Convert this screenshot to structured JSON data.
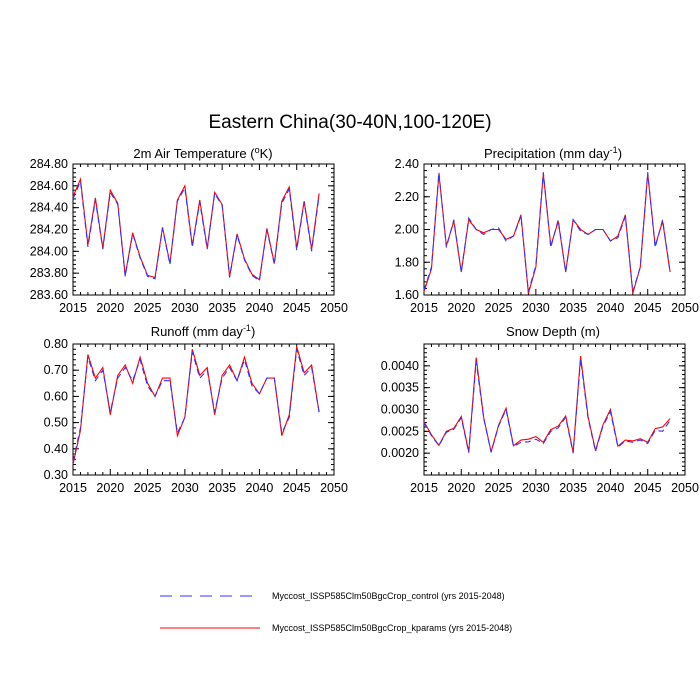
{
  "title": "Eastern China(30-40N,100-120E)",
  "colors": {
    "control": "#3333ff",
    "kparams": "#ff0000",
    "axis": "#000000"
  },
  "legend": {
    "control": "Myccost_ISSP585Clm50BgcCrop_control (yrs 2015-2048)",
    "kparams": "Myccost_ISSP585Clm50BgcCrop_kparams (yrs 2015-2048)"
  },
  "chart_data": [
    {
      "type": "line",
      "id": "air-temp",
      "title": "2m Air Temperature (",
      "title_sup": "o",
      "title_after": "K)",
      "xlim": [
        2015,
        2050
      ],
      "ylim": [
        283.6,
        284.8
      ],
      "xticks": [
        2015,
        2020,
        2025,
        2030,
        2035,
        2040,
        2045,
        2050
      ],
      "yticks": [
        283.6,
        283.8,
        284.0,
        284.2,
        284.4,
        284.6,
        284.8
      ],
      "ytick_labels": [
        "283.60",
        "283.80",
        "284.00",
        "284.20",
        "284.40",
        "284.60",
        "284.80"
      ],
      "x": [
        2015,
        2016,
        2017,
        2018,
        2019,
        2020,
        2021,
        2022,
        2023,
        2024,
        2025,
        2026,
        2027,
        2028,
        2029,
        2030,
        2031,
        2032,
        2033,
        2034,
        2035,
        2036,
        2037,
        2038,
        2039,
        2040,
        2041,
        2042,
        2043,
        2044,
        2045,
        2046,
        2047,
        2048
      ],
      "series": [
        {
          "name": "control",
          "values": [
            284.48,
            284.64,
            284.04,
            284.47,
            284.02,
            284.54,
            284.43,
            283.77,
            284.16,
            283.94,
            283.77,
            283.75,
            284.21,
            283.88,
            284.46,
            284.58,
            284.04,
            284.45,
            284.02,
            284.53,
            284.42,
            283.76,
            284.15,
            283.92,
            283.78,
            283.73,
            284.2,
            283.88,
            284.44,
            284.57,
            284.01,
            284.45,
            284.0,
            284.51
          ]
        },
        {
          "name": "kparams",
          "values": [
            284.5,
            284.66,
            284.06,
            284.49,
            284.03,
            284.56,
            284.44,
            283.78,
            284.17,
            283.95,
            283.78,
            283.76,
            284.22,
            283.89,
            284.47,
            284.6,
            284.05,
            284.47,
            284.03,
            284.54,
            284.43,
            283.77,
            284.16,
            283.93,
            283.79,
            283.74,
            284.21,
            283.89,
            284.46,
            284.59,
            284.03,
            284.46,
            284.02,
            284.53
          ]
        }
      ]
    },
    {
      "type": "line",
      "id": "precip",
      "title": "Precipitation (mm day",
      "title_sup": "-1",
      "title_after": ")",
      "xlim": [
        2015,
        2050
      ],
      "ylim": [
        1.6,
        2.4
      ],
      "xticks": [
        2015,
        2020,
        2025,
        2030,
        2035,
        2040,
        2045,
        2050
      ],
      "yticks": [
        1.6,
        1.8,
        2.0,
        2.2,
        2.4
      ],
      "ytick_labels": [
        "1.60",
        "1.80",
        "2.00",
        "2.20",
        "2.40"
      ],
      "x": [
        2015,
        2016,
        2017,
        2018,
        2019,
        2020,
        2021,
        2022,
        2023,
        2024,
        2025,
        2026,
        2027,
        2028,
        2029,
        2030,
        2031,
        2032,
        2033,
        2034,
        2035,
        2036,
        2037,
        2038,
        2039,
        2040,
        2041,
        2042,
        2043,
        2044,
        2045,
        2046,
        2047,
        2048
      ],
      "series": [
        {
          "name": "control",
          "values": [
            1.63,
            1.77,
            2.35,
            1.89,
            2.06,
            1.74,
            2.07,
            2.0,
            1.97,
            2.0,
            2.01,
            1.93,
            1.96,
            2.08,
            1.62,
            1.78,
            2.35,
            1.89,
            2.06,
            1.74,
            2.06,
            1.99,
            1.97,
            2.0,
            2.0,
            1.93,
            1.95,
            2.08,
            1.62,
            1.77,
            2.35,
            1.89,
            2.06,
            1.74
          ]
        },
        {
          "name": "kparams",
          "values": [
            1.62,
            1.76,
            2.34,
            1.9,
            2.05,
            1.74,
            2.06,
            2.0,
            1.98,
            2.0,
            2.0,
            1.94,
            1.96,
            2.09,
            1.61,
            1.77,
            2.34,
            1.9,
            2.05,
            1.74,
            2.06,
            2.0,
            1.97,
            2.0,
            2.0,
            1.93,
            1.96,
            2.09,
            1.61,
            1.77,
            2.34,
            1.9,
            2.05,
            1.74
          ]
        }
      ]
    },
    {
      "type": "line",
      "id": "runoff",
      "title": "Runoff (mm day",
      "title_sup": "-1",
      "title_after": ")",
      "xlim": [
        2015,
        2050
      ],
      "ylim": [
        0.3,
        0.8
      ],
      "xticks": [
        2015,
        2020,
        2025,
        2030,
        2035,
        2040,
        2045,
        2050
      ],
      "yticks": [
        0.3,
        0.4,
        0.5,
        0.6,
        0.7,
        0.8
      ],
      "ytick_labels": [
        "0.30",
        "0.40",
        "0.50",
        "0.60",
        "0.70",
        "0.80"
      ],
      "x": [
        2015,
        2016,
        2017,
        2018,
        2019,
        2020,
        2021,
        2022,
        2023,
        2024,
        2025,
        2026,
        2027,
        2028,
        2029,
        2030,
        2031,
        2032,
        2033,
        2034,
        2035,
        2036,
        2037,
        2038,
        2039,
        2040,
        2041,
        2042,
        2043,
        2044,
        2045,
        2046,
        2047,
        2048
      ],
      "series": [
        {
          "name": "control",
          "values": [
            0.35,
            0.48,
            0.75,
            0.66,
            0.7,
            0.54,
            0.67,
            0.71,
            0.66,
            0.74,
            0.64,
            0.6,
            0.66,
            0.66,
            0.46,
            0.52,
            0.77,
            0.67,
            0.7,
            0.54,
            0.67,
            0.71,
            0.66,
            0.74,
            0.64,
            0.61,
            0.67,
            0.67,
            0.46,
            0.52,
            0.78,
            0.68,
            0.71,
            0.54
          ]
        },
        {
          "name": "kparams",
          "values": [
            0.34,
            0.47,
            0.76,
            0.67,
            0.71,
            0.53,
            0.68,
            0.72,
            0.65,
            0.75,
            0.65,
            0.6,
            0.67,
            0.67,
            0.45,
            0.52,
            0.78,
            0.68,
            0.71,
            0.53,
            0.68,
            0.72,
            0.66,
            0.75,
            0.65,
            0.61,
            0.67,
            0.67,
            0.45,
            0.53,
            0.79,
            0.69,
            0.72,
            0.54
          ]
        }
      ]
    },
    {
      "type": "line",
      "id": "snow",
      "title": "Snow Depth (m)",
      "title_sup": "",
      "title_after": "",
      "xlim": [
        2015,
        2050
      ],
      "ylim": [
        0.0015,
        0.0045
      ],
      "xticks": [
        2015,
        2020,
        2025,
        2030,
        2035,
        2040,
        2045,
        2050
      ],
      "yticks": [
        0.002,
        0.0025,
        0.003,
        0.0035,
        0.004
      ],
      "ytick_labels": [
        "0.0020",
        "0.0025",
        "0.0030",
        "0.0035",
        "0.0040"
      ],
      "x": [
        2015,
        2016,
        2017,
        2018,
        2019,
        2020,
        2021,
        2022,
        2023,
        2024,
        2025,
        2026,
        2027,
        2028,
        2029,
        2030,
        2031,
        2032,
        2033,
        2034,
        2035,
        2036,
        2037,
        2038,
        2039,
        2040,
        2041,
        2042,
        2043,
        2044,
        2045,
        2046,
        2047,
        2048
      ],
      "series": [
        {
          "name": "control",
          "values": [
            0.0027,
            0.0024,
            0.00217,
            0.00248,
            0.00255,
            0.00281,
            0.00201,
            0.0041,
            0.0028,
            0.00202,
            0.00262,
            0.003,
            0.00215,
            0.00225,
            0.00226,
            0.00232,
            0.00222,
            0.0025,
            0.00258,
            0.00282,
            0.002,
            0.00415,
            0.0028,
            0.00204,
            0.00262,
            0.00295,
            0.00214,
            0.00228,
            0.00225,
            0.0023,
            0.00222,
            0.00252,
            0.0025,
            0.00275
          ]
        },
        {
          "name": "kparams",
          "values": [
            0.00272,
            0.00242,
            0.00218,
            0.0025,
            0.00257,
            0.00284,
            0.00203,
            0.00419,
            0.00282,
            0.00203,
            0.00264,
            0.00303,
            0.00217,
            0.0023,
            0.00232,
            0.00238,
            0.00225,
            0.00254,
            0.00262,
            0.00285,
            0.00202,
            0.00422,
            0.00284,
            0.00206,
            0.00265,
            0.003,
            0.00216,
            0.0023,
            0.00228,
            0.00233,
            0.00225,
            0.00256,
            0.0026,
            0.00279
          ]
        }
      ]
    }
  ]
}
